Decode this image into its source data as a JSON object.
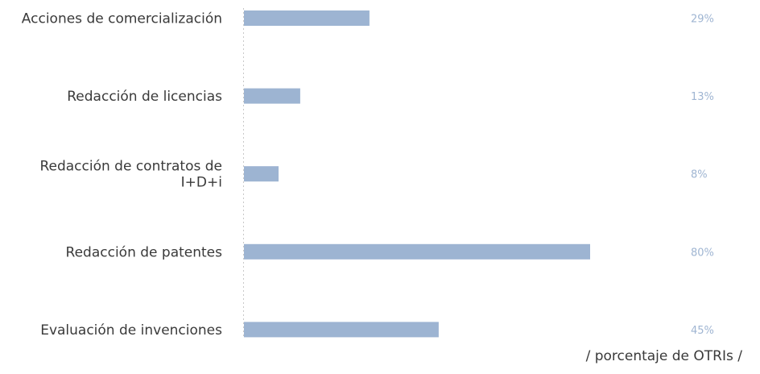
{
  "chart_data": {
    "type": "bar",
    "orientation": "horizontal",
    "categories": [
      [
        "Acciones de comercialización"
      ],
      [
        "Redacción de licencias"
      ],
      [
        "Redacción de contratos de",
        "I+D+i"
      ],
      [
        "Redacción de patentes"
      ],
      [
        "Evaluación de invenciones"
      ]
    ],
    "values": [
      29,
      13,
      8,
      80,
      45
    ],
    "value_labels": [
      "29%",
      "13%",
      "8%",
      "80%",
      "45%"
    ],
    "xlim": [
      0,
      100
    ],
    "unit_label": "/  porcentaje de OTRIs  /",
    "grid": false,
    "colors": {
      "bar": "#9db4d2",
      "value_text": "#9fb5d2",
      "axis": "#c8c8c8"
    }
  }
}
